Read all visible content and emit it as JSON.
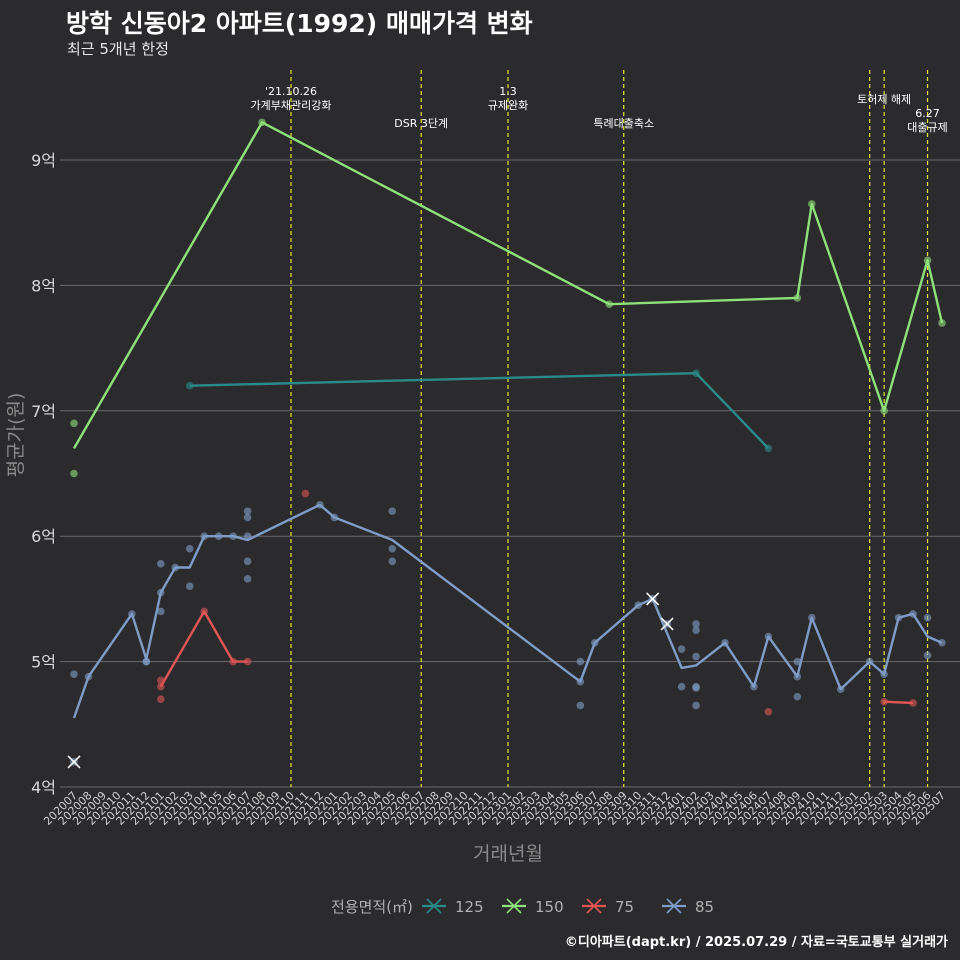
{
  "title": "방학 신동아2 아파트(1992) 매매가격 변화",
  "subtitle": "최근 5개년 한정",
  "caption": "©디아파트(dapt.kr) / 2025.07.29 / 자료=국토교통부 실거래가",
  "chart_data": {
    "type": "line",
    "xlabel": "거래년월",
    "ylabel": "평균가(원)",
    "ylim": [
      4,
      9.95
    ],
    "yticks": [
      {
        "value": 4,
        "label": "4억"
      },
      {
        "value": 5,
        "label": "5억"
      },
      {
        "value": 6,
        "label": "6억"
      },
      {
        "value": 7,
        "label": "7억"
      },
      {
        "value": 8,
        "label": "8억"
      },
      {
        "value": 9,
        "label": "9억"
      }
    ],
    "categories": [
      "202007",
      "202008",
      "202009",
      "202010",
      "202011",
      "202012",
      "202101",
      "202102",
      "202103",
      "202104",
      "202105",
      "202106",
      "202107",
      "202108",
      "202109",
      "202110",
      "202111",
      "202112",
      "202201",
      "202202",
      "202203",
      "202204",
      "202205",
      "202206",
      "202207",
      "202208",
      "202209",
      "202210",
      "202211",
      "202212",
      "202301",
      "202302",
      "202303",
      "202304",
      "202305",
      "202306",
      "202307",
      "202308",
      "202309",
      "202310",
      "202311",
      "202312",
      "202401",
      "202402",
      "202403",
      "202404",
      "202405",
      "202406",
      "202407",
      "202408",
      "202409",
      "202410",
      "202411",
      "202412",
      "202501",
      "202502",
      "202503",
      "202504",
      "202505",
      "202506",
      "202507"
    ],
    "legend": {
      "title": "전용면적(㎡)",
      "position": "bottom"
    },
    "grid": true,
    "annotations": [
      {
        "x": "202110",
        "lines": [
          "'21.10.26",
          "가계부채관리강화"
        ],
        "level": 0
      },
      {
        "x": "202207",
        "lines": [
          "DSR 3단계"
        ],
        "level": 2
      },
      {
        "x": "202301",
        "lines": [
          "1.3",
          "규제완화"
        ],
        "level": 0
      },
      {
        "x": "202309",
        "lines": [
          "특례대출축소"
        ],
        "level": 2
      },
      {
        "x": "202502",
        "lines": [],
        "level": 0
      },
      {
        "x": "202503",
        "lines": [
          "토허제 해제"
        ],
        "level": 1
      },
      {
        "x": "202506",
        "lines": [
          "6.27",
          "대출규제"
        ],
        "level": 3
      }
    ],
    "series": [
      {
        "name": "125",
        "color": "#2a8a8a",
        "line": [
          [
            "202103",
            7.2
          ],
          [
            "202402",
            7.3
          ],
          [
            "202407",
            6.7
          ]
        ],
        "points": [
          [
            "202103",
            7.2
          ],
          [
            "202402",
            7.3
          ],
          [
            "202407",
            6.7
          ]
        ],
        "crosses": []
      },
      {
        "name": "150",
        "color": "#8fe07a",
        "line": [
          [
            "202007",
            6.7
          ],
          [
            "202108",
            9.3
          ],
          [
            "202308",
            7.85
          ],
          [
            "202409",
            7.9
          ],
          [
            "202410",
            8.65
          ],
          [
            "202503",
            7.0
          ],
          [
            "202506",
            8.2
          ],
          [
            "202507",
            7.7
          ]
        ],
        "points": [
          [
            "202007",
            6.9
          ],
          [
            "202007",
            6.5
          ],
          [
            "202108",
            9.3
          ],
          [
            "202308",
            7.85
          ],
          [
            "202409",
            7.9
          ],
          [
            "202410",
            8.65
          ],
          [
            "202503",
            7.0
          ],
          [
            "202506",
            8.2
          ],
          [
            "202507",
            7.7
          ]
        ],
        "crosses": []
      },
      {
        "name": "75",
        "color": "#e05555",
        "line": [
          [
            "202101",
            4.8
          ],
          [
            "202104",
            5.4
          ],
          [
            "202106",
            5.0
          ],
          [
            "202107",
            5.0
          ]
        ],
        "line2": [
          [
            "202503",
            4.68
          ],
          [
            "202505",
            4.67
          ]
        ],
        "points": [
          [
            "202101",
            4.85
          ],
          [
            "202101",
            4.8
          ],
          [
            "202101",
            4.7
          ],
          [
            "202104",
            5.4
          ],
          [
            "202106",
            5.0
          ],
          [
            "202107",
            5.0
          ],
          [
            "202111",
            6.34
          ],
          [
            "202407",
            4.6
          ],
          [
            "202503",
            4.68
          ],
          [
            "202505",
            4.67
          ]
        ],
        "crosses": []
      },
      {
        "name": "85",
        "color": "#7f9cc7",
        "line": [
          [
            "202007",
            4.55
          ],
          [
            "202008",
            4.88
          ],
          [
            "202011",
            5.38
          ],
          [
            "202012",
            5.02
          ],
          [
            "202101",
            5.55
          ],
          [
            "202102",
            5.75
          ],
          [
            "202103",
            5.75
          ],
          [
            "202104",
            6.0
          ],
          [
            "202105",
            6.0
          ],
          [
            "202106",
            6.0
          ],
          [
            "202107",
            5.97
          ],
          [
            "202112",
            6.25
          ],
          [
            "202201",
            6.15
          ],
          [
            "202205",
            5.97
          ],
          [
            "202306",
            4.84
          ],
          [
            "202307",
            5.15
          ],
          [
            "202310",
            5.45
          ],
          [
            "202311",
            5.5
          ],
          [
            "202401",
            4.95
          ],
          [
            "202402",
            4.97
          ],
          [
            "202404",
            5.15
          ],
          [
            "202406",
            4.8
          ],
          [
            "202407",
            5.2
          ],
          [
            "202409",
            4.88
          ],
          [
            "202410",
            5.35
          ],
          [
            "202412",
            4.78
          ],
          [
            "202502",
            5.0
          ],
          [
            "202503",
            4.9
          ],
          [
            "202504",
            5.35
          ],
          [
            "202505",
            5.38
          ],
          [
            "202506",
            5.2
          ],
          [
            "202507",
            5.15
          ]
        ],
        "points": [
          [
            "202007",
            4.9
          ],
          [
            "202008",
            4.88
          ],
          [
            "202011",
            5.38
          ],
          [
            "202012",
            5.0
          ],
          [
            "202012",
            5.0
          ],
          [
            "202101",
            5.78
          ],
          [
            "202101",
            5.55
          ],
          [
            "202101",
            5.4
          ],
          [
            "202102",
            5.75
          ],
          [
            "202103",
            5.9
          ],
          [
            "202103",
            5.6
          ],
          [
            "202104",
            6.0
          ],
          [
            "202105",
            6.0
          ],
          [
            "202106",
            6.0
          ],
          [
            "202107",
            6.2
          ],
          [
            "202107",
            6.15
          ],
          [
            "202107",
            6.0
          ],
          [
            "202107",
            5.8
          ],
          [
            "202107",
            5.66
          ],
          [
            "202112",
            6.25
          ],
          [
            "202201",
            6.15
          ],
          [
            "202205",
            6.2
          ],
          [
            "202205",
            5.9
          ],
          [
            "202205",
            5.8
          ],
          [
            "202306",
            5.0
          ],
          [
            "202306",
            4.84
          ],
          [
            "202306",
            4.65
          ],
          [
            "202307",
            5.15
          ],
          [
            "202310",
            5.45
          ],
          [
            "202401",
            5.1
          ],
          [
            "202401",
            4.8
          ],
          [
            "202402",
            5.3
          ],
          [
            "202402",
            5.25
          ],
          [
            "202402",
            5.04
          ],
          [
            "202402",
            4.8
          ],
          [
            "202402",
            4.79
          ],
          [
            "202402",
            4.65
          ],
          [
            "202404",
            5.15
          ],
          [
            "202406",
            4.8
          ],
          [
            "202407",
            5.2
          ],
          [
            "202409",
            5.0
          ],
          [
            "202409",
            4.88
          ],
          [
            "202409",
            4.72
          ],
          [
            "202410",
            5.35
          ],
          [
            "202412",
            4.78
          ],
          [
            "202502",
            5.0
          ],
          [
            "202503",
            4.9
          ],
          [
            "202504",
            5.35
          ],
          [
            "202505",
            5.38
          ],
          [
            "202506",
            5.35
          ],
          [
            "202506",
            5.05
          ],
          [
            "202507",
            5.15
          ]
        ],
        "crosses": [
          [
            "202007",
            4.2
          ],
          [
            "202311",
            5.5
          ],
          [
            "202312",
            5.3
          ]
        ]
      }
    ]
  }
}
